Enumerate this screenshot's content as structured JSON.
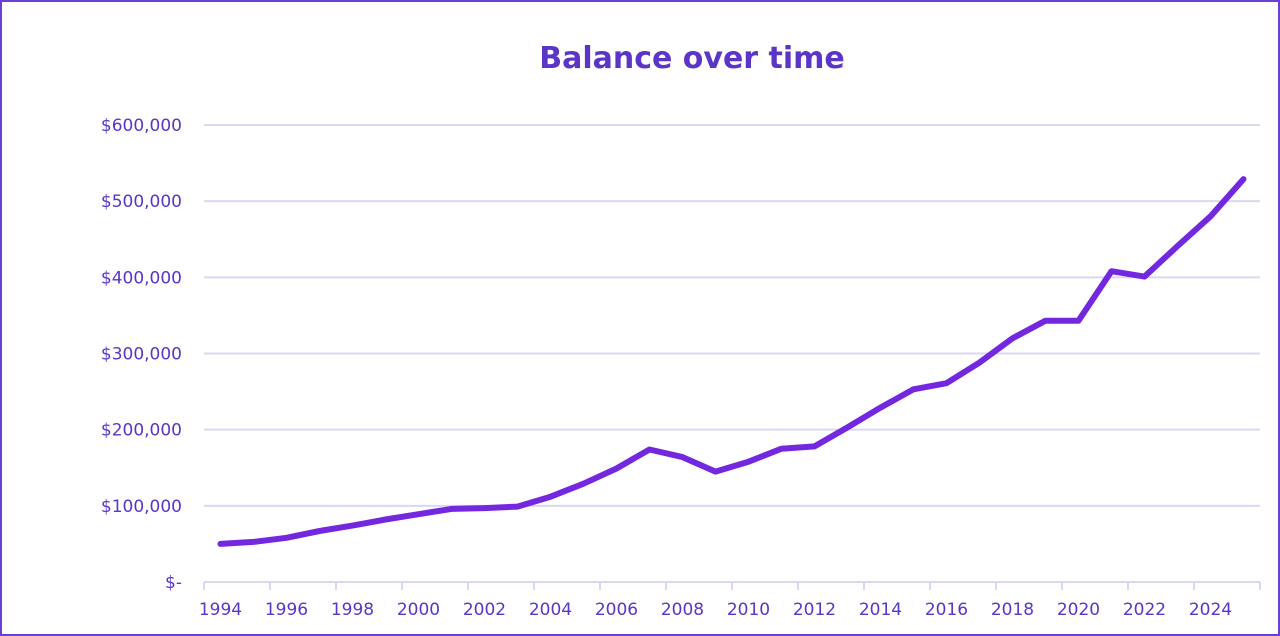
{
  "chart_data": {
    "type": "line",
    "title": "Balance over time",
    "xlabel": "",
    "ylabel": "",
    "ylim": [
      0,
      600000
    ],
    "yticks": [
      0,
      100000,
      200000,
      300000,
      400000,
      500000,
      600000
    ],
    "ytick_labels": [
      "$-",
      "$100,000",
      "$200,000",
      "$300,000",
      "$400,000",
      "$500,000",
      "$600,000"
    ],
    "grid": true,
    "colors": {
      "line": "#7328e0",
      "text": "#5a35c8",
      "grid": "#dcd6f5",
      "frame": "#6a3fd6"
    },
    "categories": [
      1994,
      1995,
      1996,
      1997,
      1998,
      1999,
      2000,
      2001,
      2002,
      2003,
      2004,
      2005,
      2006,
      2007,
      2008,
      2009,
      2010,
      2011,
      2012,
      2013,
      2014,
      2015,
      2016,
      2017,
      2018,
      2019,
      2020,
      2021,
      2022,
      2023,
      2024,
      2025
    ],
    "xtick_labels": [
      "1994",
      "1996",
      "1998",
      "2000",
      "2002",
      "2004",
      "2006",
      "2008",
      "2010",
      "2012",
      "2014",
      "2016",
      "2018",
      "2020",
      "2022",
      "2024"
    ],
    "series": [
      {
        "values": [
          50000,
          52600,
          58000,
          67000,
          74000,
          82000,
          89000,
          96000,
          97000,
          99000,
          112000,
          129000,
          149000,
          174000,
          164000,
          145000,
          158000,
          175000,
          178000,
          203000,
          229000,
          253000,
          261000,
          288000,
          320000,
          343000,
          343000,
          408000,
          401000,
          441000,
          480000,
          529000
        ]
      }
    ]
  }
}
